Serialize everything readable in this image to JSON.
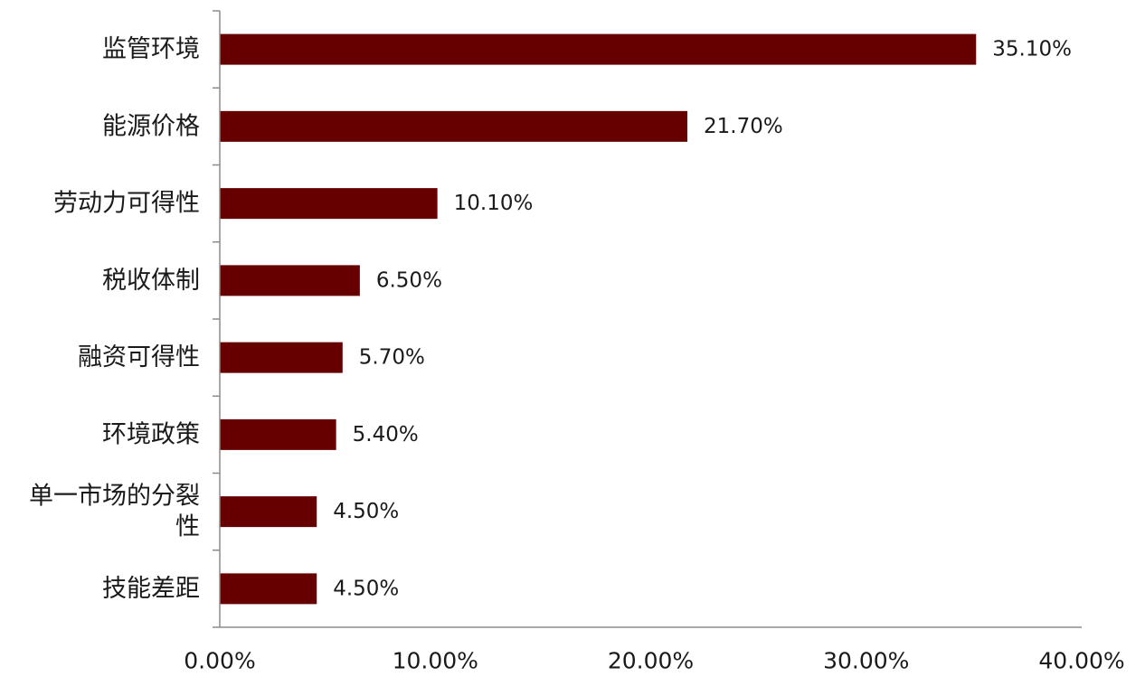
{
  "chart_data": {
    "type": "bar",
    "orientation": "horizontal",
    "title": "",
    "xlabel": "",
    "ylabel": "",
    "categories": [
      [
        "监管环境"
      ],
      [
        "能源价格"
      ],
      [
        "劳动力可得性"
      ],
      [
        "税收体制"
      ],
      [
        "融资可得性"
      ],
      [
        "环境政策"
      ],
      [
        "单一市场的分裂",
        "性"
      ],
      [
        "技能差距"
      ]
    ],
    "values": [
      35.1,
      21.7,
      10.1,
      6.5,
      5.7,
      5.4,
      4.5,
      4.5
    ],
    "value_labels": [
      "35.10%",
      "21.70%",
      "10.10%",
      "6.50%",
      "5.70%",
      "5.40%",
      "4.50%",
      "4.50%"
    ],
    "xlim": [
      0,
      40
    ],
    "xticks": [
      0,
      10,
      20,
      30,
      40
    ],
    "xtick_labels": [
      "0.00%",
      "10.00%",
      "20.00%",
      "30.00%",
      "40.00%"
    ],
    "grid": false,
    "legend": "none",
    "colors": {
      "bar": "#660000",
      "axis": "#8c8c8c",
      "text": "#1a1a1a"
    }
  }
}
